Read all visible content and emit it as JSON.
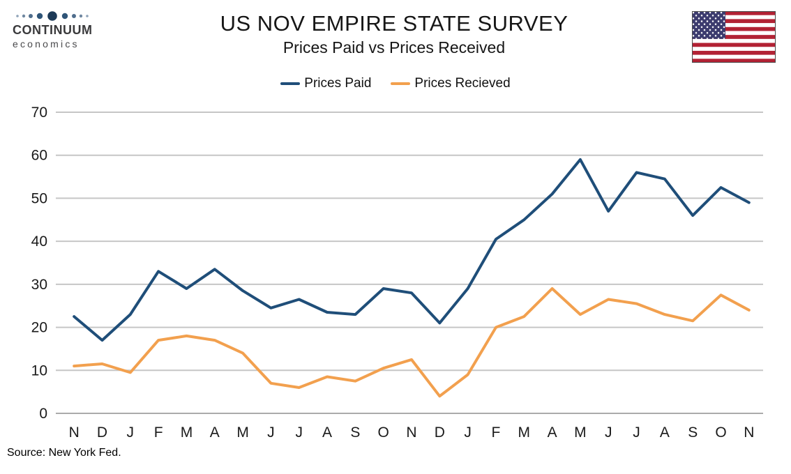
{
  "brand": {
    "name": "CONTINUUM",
    "sub": "economics",
    "icon": "dots-wave-icon"
  },
  "flag_icon": "us-flag-icon",
  "source": "Source: New York Fed.",
  "chart_data": {
    "type": "line",
    "title": "US NOV EMPIRE STATE SURVEY",
    "subtitle": "Prices Paid vs Prices Received",
    "categories": [
      "N",
      "D",
      "J",
      "F",
      "M",
      "A",
      "M",
      "J",
      "J",
      "A",
      "S",
      "O",
      "N",
      "D",
      "J",
      "F",
      "M",
      "A",
      "M",
      "J",
      "J",
      "A",
      "S",
      "O",
      "N"
    ],
    "series": [
      {
        "name": "Prices Paid",
        "color": "#1F4E79",
        "values": [
          22.5,
          17,
          23,
          33,
          29,
          33.5,
          28.5,
          24.5,
          26.5,
          23.5,
          23,
          29,
          28,
          21,
          29,
          40.5,
          45,
          51,
          59,
          47,
          56,
          54.5,
          46,
          52.5,
          49
        ]
      },
      {
        "name": "Prices Recieved",
        "color": "#F2A04E",
        "values": [
          11,
          11.5,
          9.5,
          17,
          18,
          17,
          14,
          7,
          6,
          8.5,
          7.5,
          10.5,
          12.5,
          4,
          9,
          20,
          22.5,
          29,
          23,
          26.5,
          25.5,
          23,
          21.5,
          27.5,
          24
        ]
      }
    ],
    "xlabel": "",
    "ylabel": "",
    "ylim": [
      0,
      70
    ],
    "yticks": [
      0,
      10,
      20,
      30,
      40,
      50,
      60,
      70
    ],
    "grid": true,
    "legend_position": "top"
  },
  "colors": {
    "grid": "#C6C6C6",
    "axis": "#ABABAB",
    "text": "#1a1a1a"
  }
}
